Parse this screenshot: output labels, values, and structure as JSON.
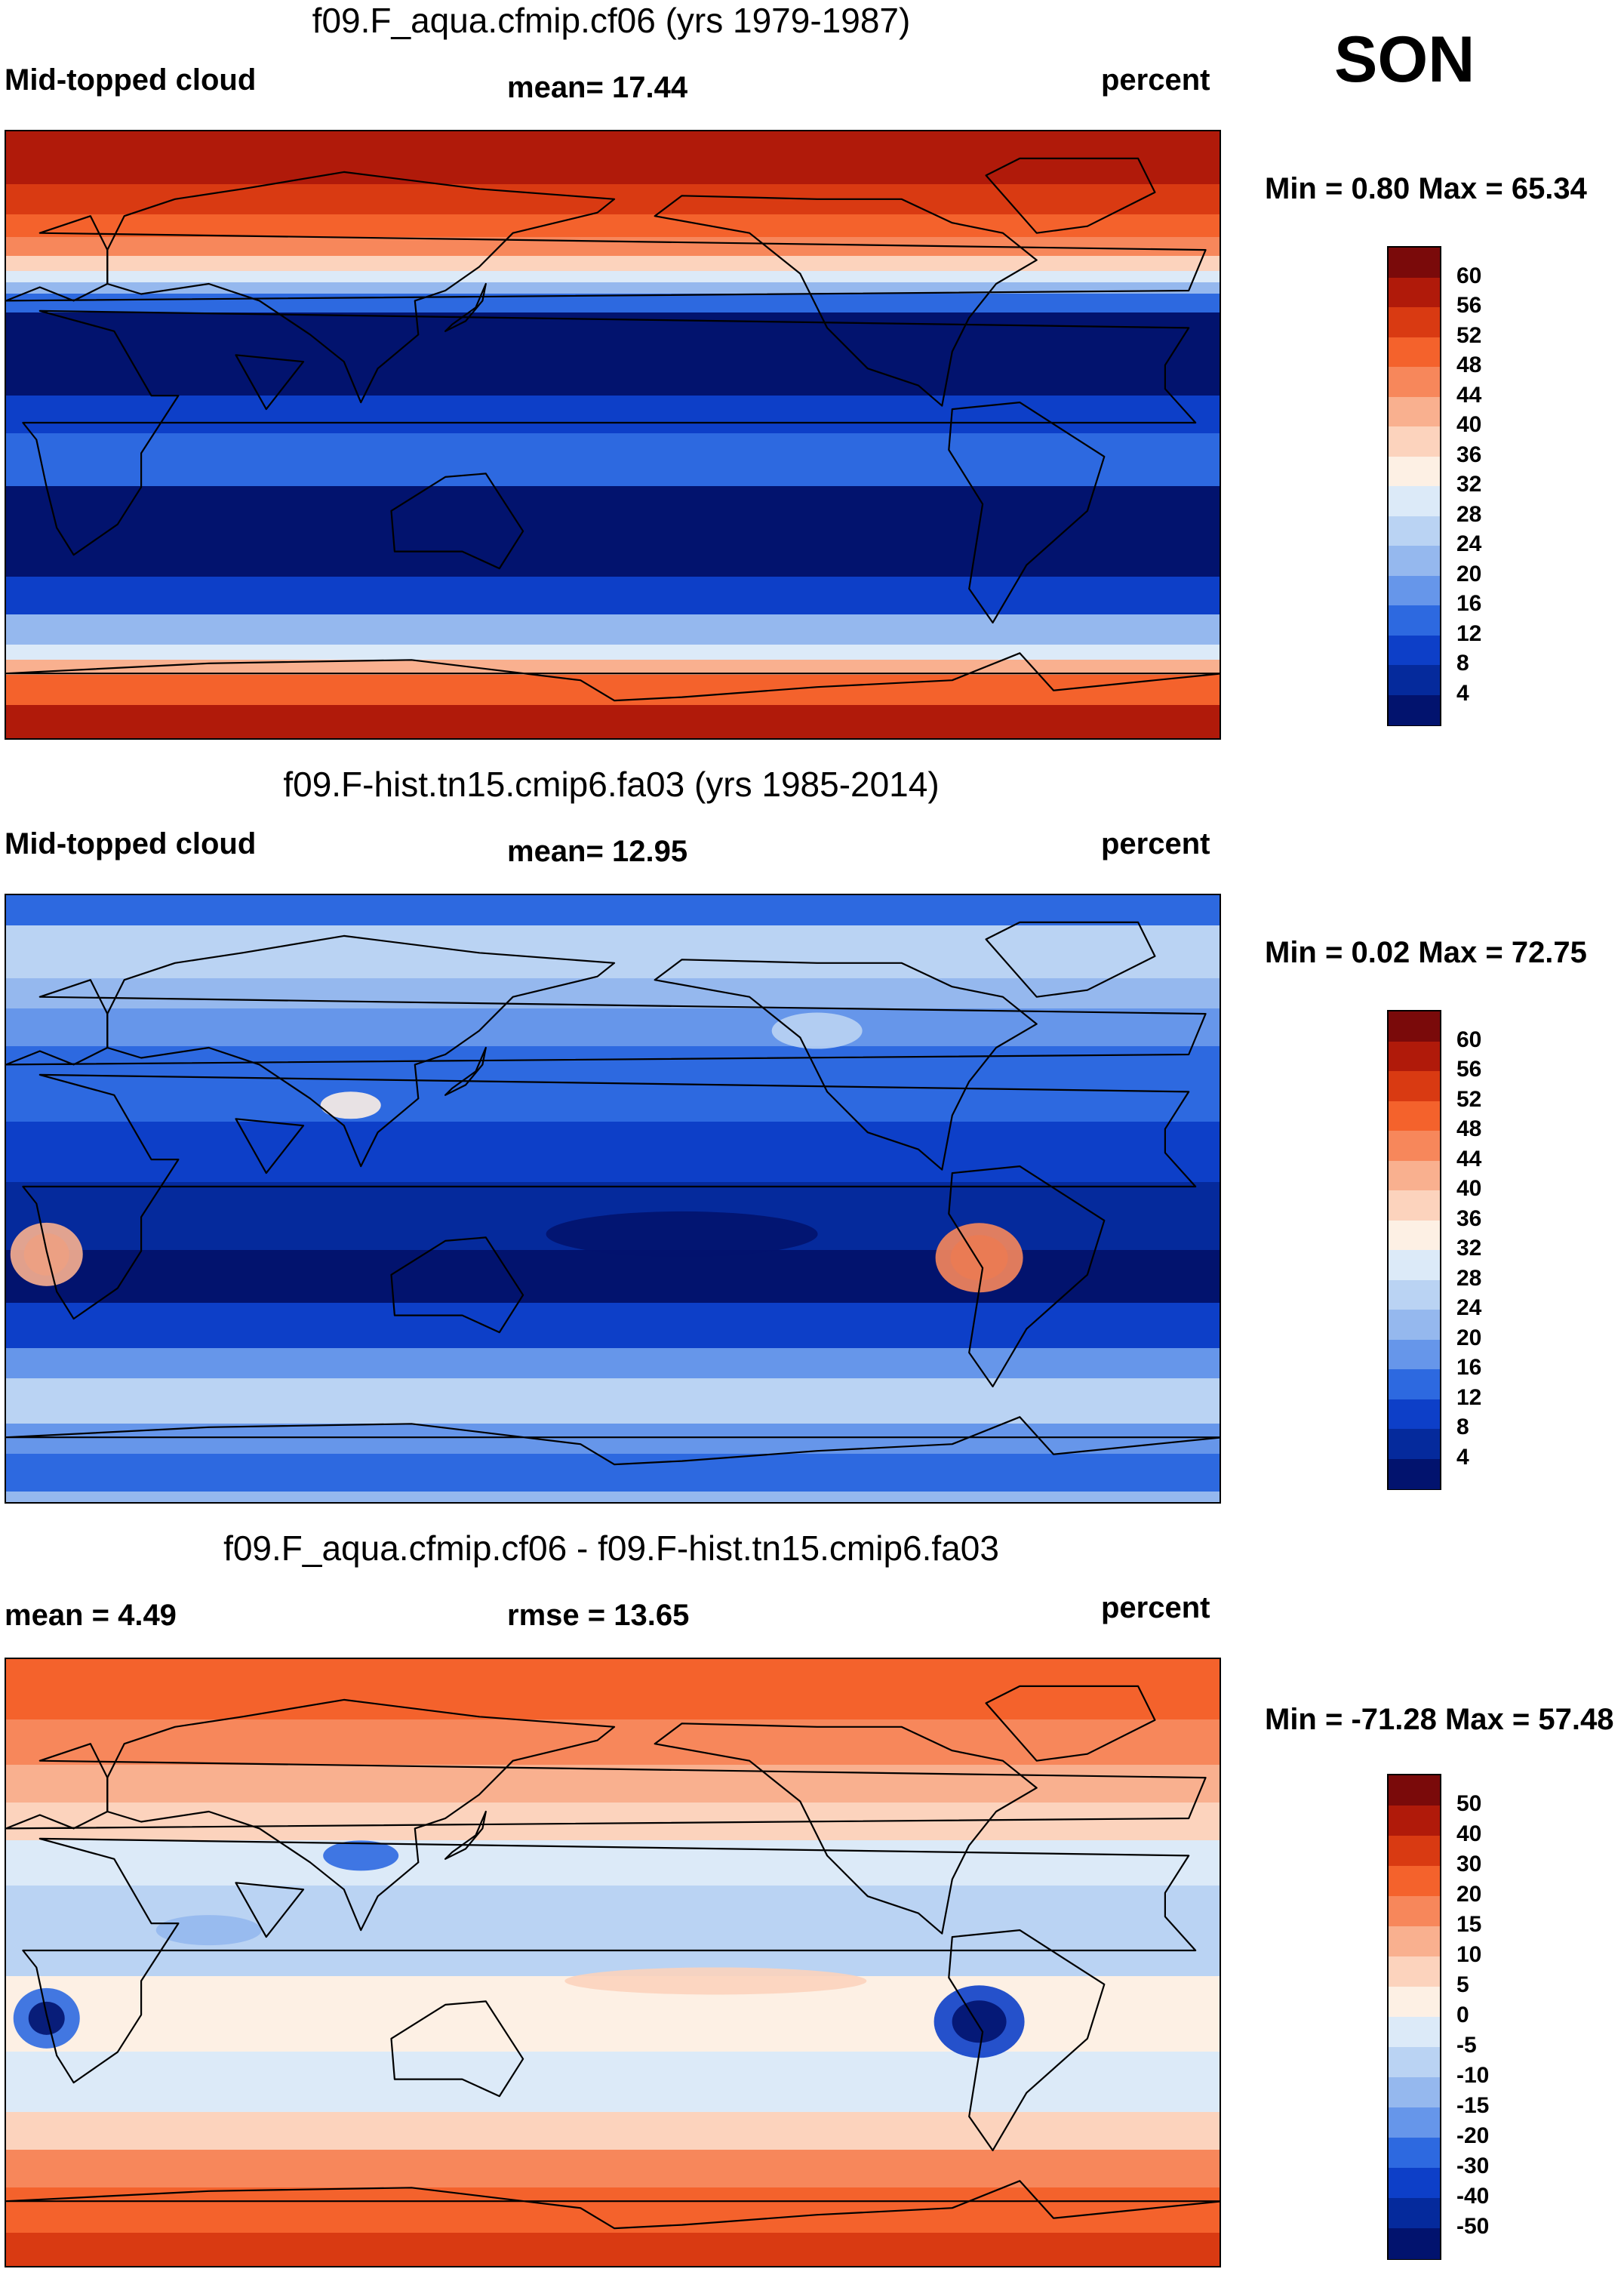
{
  "season": "SON",
  "panels": [
    {
      "title": "f09.F_aqua.cfmip.cf06 (yrs 1979-1987)",
      "left_label": "Mid-topped cloud",
      "center_label": "mean=  17.44",
      "right_label": "percent",
      "minmax": "Min =   0.80 Max =  65.34",
      "colorbar_labels": [
        "60",
        "56",
        "52",
        "48",
        "44",
        "40",
        "36",
        "32",
        "28",
        "24",
        "20",
        "16",
        "12",
        "8",
        "4"
      ]
    },
    {
      "title": "f09.F-hist.tn15.cmip6.fa03 (yrs 1985-2014)",
      "left_label": "Mid-topped cloud",
      "center_label": "mean=  12.95",
      "right_label": "percent",
      "minmax": "Min =   0.02 Max =  72.75",
      "colorbar_labels": [
        "60",
        "56",
        "52",
        "48",
        "44",
        "40",
        "36",
        "32",
        "28",
        "24",
        "20",
        "16",
        "12",
        "8",
        "4"
      ]
    },
    {
      "title": "f09.F_aqua.cfmip.cf06 - f09.F-hist.tn15.cmip6.fa03",
      "left_label": "mean =    4.49",
      "center_label": "rmse =  13.65",
      "right_label": "percent",
      "minmax": "Min = -71.28 Max =  57.48",
      "colorbar_labels": [
        "50",
        "40",
        "30",
        "20",
        "15",
        "10",
        "5",
        "0",
        "-5",
        "-10",
        "-15",
        "-20",
        "-30",
        "-40",
        "-50"
      ]
    }
  ],
  "colors": {
    "scale16": [
      "#7a0a0a",
      "#b01a0a",
      "#d93a12",
      "#f4622c",
      "#f7875b",
      "#f9b08f",
      "#fcd3bd",
      "#fdf0e4",
      "#dceaf8",
      "#bad3f3",
      "#95b8ee",
      "#6696ea",
      "#2d69e0",
      "#0d3fc8",
      "#052a9c",
      "#02136e"
    ],
    "continent_outline": "#000000"
  }
}
